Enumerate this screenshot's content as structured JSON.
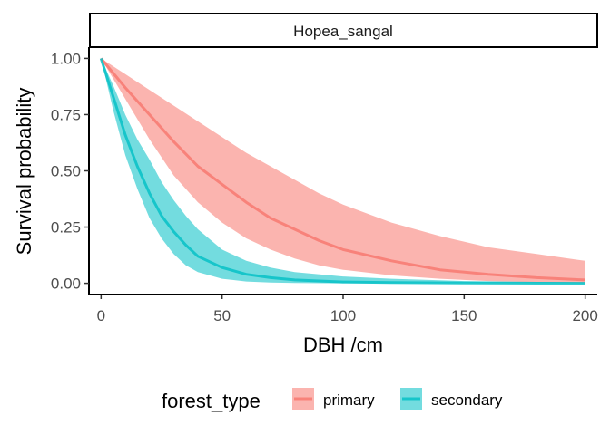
{
  "chart_data": {
    "type": "line",
    "facet_label": "Hopea_sangal",
    "xlabel": "DBH /cm",
    "ylabel": "Survival probability",
    "xlim": [
      -5,
      205
    ],
    "ylim": [
      -0.05,
      1.05
    ],
    "x_ticks": [
      0,
      50,
      100,
      150,
      200
    ],
    "x_tick_labels": [
      "0",
      "50",
      "100",
      "150",
      "200"
    ],
    "y_ticks": [
      0,
      0.25,
      0.5,
      0.75,
      1.0
    ],
    "y_tick_labels": [
      "0.00",
      "0.25",
      "0.50",
      "0.75",
      "1.00"
    ],
    "grid": false,
    "legend": {
      "title": "forest_type",
      "position": "bottom"
    },
    "series": [
      {
        "name": "primary",
        "color": "#F8766D",
        "x": [
          0,
          10,
          20,
          30,
          40,
          50,
          60,
          70,
          80,
          90,
          100,
          120,
          140,
          160,
          180,
          200
        ],
        "y": [
          1.0,
          0.87,
          0.75,
          0.63,
          0.52,
          0.44,
          0.36,
          0.29,
          0.24,
          0.19,
          0.15,
          0.1,
          0.06,
          0.04,
          0.025,
          0.015
        ],
        "lower": [
          1.0,
          0.82,
          0.64,
          0.48,
          0.36,
          0.27,
          0.2,
          0.15,
          0.11,
          0.08,
          0.06,
          0.035,
          0.02,
          0.01,
          0.005,
          0.002
        ],
        "upper": [
          1.0,
          0.93,
          0.86,
          0.79,
          0.72,
          0.65,
          0.58,
          0.52,
          0.46,
          0.4,
          0.35,
          0.27,
          0.21,
          0.16,
          0.13,
          0.1
        ]
      },
      {
        "name": "secondary",
        "color": "#00BFC4",
        "x": [
          0,
          5,
          10,
          15,
          20,
          25,
          30,
          35,
          40,
          50,
          60,
          70,
          80,
          100,
          120,
          150,
          200
        ],
        "y": [
          1.0,
          0.83,
          0.66,
          0.52,
          0.4,
          0.3,
          0.23,
          0.17,
          0.12,
          0.07,
          0.04,
          0.025,
          0.015,
          0.006,
          0.003,
          0.001,
          0.0
        ],
        "lower": [
          1.0,
          0.77,
          0.57,
          0.42,
          0.29,
          0.2,
          0.13,
          0.08,
          0.05,
          0.02,
          0.008,
          0.003,
          0.001,
          0.0,
          0.0,
          0.0,
          0.0
        ],
        "upper": [
          1.0,
          0.88,
          0.75,
          0.64,
          0.55,
          0.45,
          0.37,
          0.3,
          0.24,
          0.15,
          0.1,
          0.07,
          0.05,
          0.03,
          0.02,
          0.01,
          0.004
        ]
      }
    ]
  }
}
